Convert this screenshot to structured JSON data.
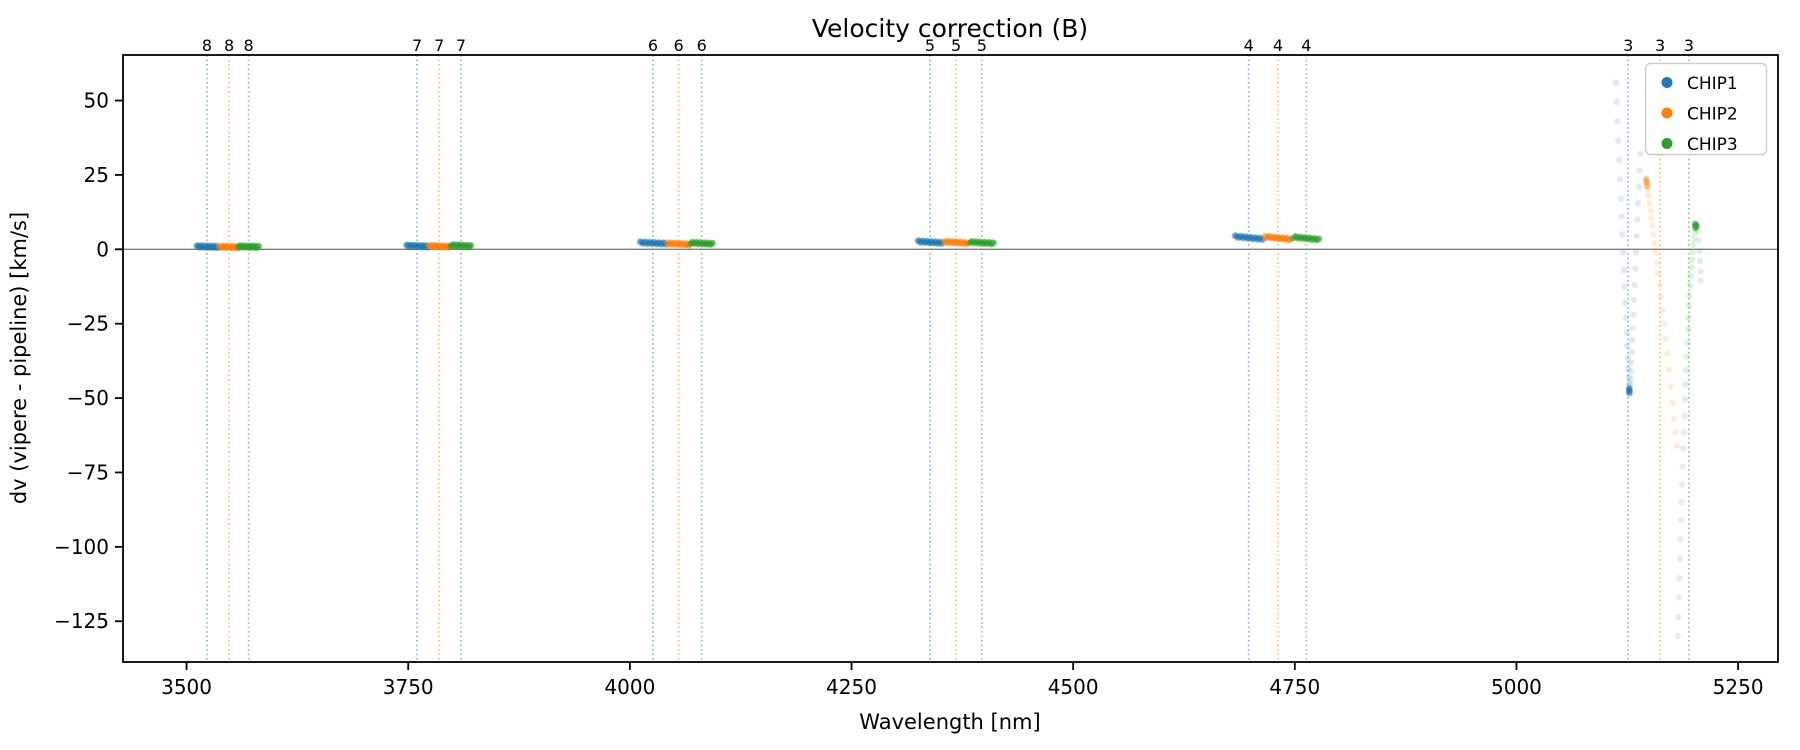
{
  "figure": {
    "background": "#ffffff",
    "frame_color": "#000000",
    "zero_line_color": "#808080"
  },
  "chart_data": {
    "type": "scatter",
    "title": "Velocity correction (B)",
    "xlabel": "Wavelength [nm]",
    "ylabel": "dv (vipere - pipeline) [km/s]",
    "xlim": [
      3428.3,
      5295.0
    ],
    "ylim": [
      -138.7,
      65.3
    ],
    "x_ticks": [
      3500,
      3750,
      4000,
      4250,
      4500,
      4750,
      5000,
      5250
    ],
    "y_ticks": [
      50,
      25,
      0,
      -25,
      -50,
      -75,
      -100,
      -125
    ],
    "grid": false,
    "zero_line": 0,
    "legend_position": "upper right",
    "orders": [
      {
        "order": "8",
        "lines": {
          "CHIP1": 3523.0,
          "CHIP2": 3548.0,
          "CHIP3": 3570.0
        }
      },
      {
        "order": "7",
        "lines": {
          "CHIP1": 3760.0,
          "CHIP2": 3785.0,
          "CHIP3": 3809.5
        }
      },
      {
        "order": "6",
        "lines": {
          "CHIP1": 4026.0,
          "CHIP2": 4055.0,
          "CHIP3": 4081.0
        }
      },
      {
        "order": "5",
        "lines": {
          "CHIP1": 4338.5,
          "CHIP2": 4368.0,
          "CHIP3": 4397.0
        }
      },
      {
        "order": "4",
        "lines": {
          "CHIP1": 4698.0,
          "CHIP2": 4731.0,
          "CHIP3": 4763.0
        }
      },
      {
        "order": "3",
        "lines": {
          "CHIP1": 5126.0,
          "CHIP2": 5162.0,
          "CHIP3": 5194.5
        }
      }
    ],
    "series": [
      {
        "name": "CHIP1",
        "color": "#1f77b4",
        "clusters": [
          {
            "wl": 3523.0,
            "hw": 12.0,
            "dv": 0.9,
            "tilt": -0.2
          },
          {
            "wl": 3760.0,
            "hw": 12.5,
            "dv": 1.1,
            "tilt": -0.3
          },
          {
            "wl": 4026.0,
            "hw": 15.0,
            "dv": 2.1,
            "tilt": -0.4
          },
          {
            "wl": 4338.5,
            "hw": 14.0,
            "dv": 2.4,
            "tilt": -0.5
          },
          {
            "wl": 4698.0,
            "hw": 16.0,
            "dv": 3.9,
            "tilt": -0.9
          }
        ],
        "trail_points": [
          [
            5112.0,
            56
          ],
          [
            5112.9,
            49.5
          ],
          [
            5113.9,
            43
          ],
          [
            5114.8,
            36.5
          ],
          [
            5115.8,
            30
          ],
          [
            5116.7,
            23.5
          ],
          [
            5117.7,
            17
          ],
          [
            5118.6,
            11
          ],
          [
            5119.4,
            5
          ],
          [
            5120.3,
            -1
          ],
          [
            5121.2,
            -7
          ],
          [
            5122.0,
            -12.5
          ],
          [
            5122.8,
            -18
          ],
          [
            5123.5,
            -23
          ],
          [
            5124.2,
            -28
          ],
          [
            5124.9,
            -32.5
          ],
          [
            5125.5,
            -36.5
          ],
          [
            5126.0,
            -40
          ],
          [
            5126.4,
            -43
          ],
          [
            5126.8,
            -45.5
          ],
          [
            5127.0,
            -47
          ],
          [
            5139.5,
            32
          ],
          [
            5138.7,
            26.5
          ],
          [
            5137.9,
            21
          ],
          [
            5137.1,
            15.5
          ],
          [
            5136.4,
            10
          ],
          [
            5135.6,
            4.5
          ],
          [
            5134.8,
            -1
          ],
          [
            5134.0,
            -6.5
          ],
          [
            5133.2,
            -12
          ],
          [
            5132.5,
            -17
          ],
          [
            5131.8,
            -22
          ],
          [
            5131.1,
            -26.5
          ],
          [
            5130.6,
            -30.5
          ],
          [
            5130.0,
            -34.5
          ],
          [
            5129.5,
            -38
          ],
          [
            5129.1,
            -41
          ],
          [
            5128.7,
            -43.5
          ],
          [
            5128.5,
            -45
          ]
        ],
        "dense_points": [
          [
            5127.2,
            -47.4
          ],
          [
            5127.6,
            -46.7
          ],
          [
            5126.9,
            -48.0
          ],
          [
            5127.4,
            -48.4
          ],
          [
            5127.0,
            -46.9
          ],
          [
            5127.8,
            -47.8
          ]
        ]
      },
      {
        "name": "CHIP2",
        "color": "#ff7f0e",
        "clusters": [
          {
            "wl": 3548.0,
            "hw": 11.5,
            "dv": 0.8,
            "tilt": -0.2
          },
          {
            "wl": 3785.0,
            "hw": 12.0,
            "dv": 1.0,
            "tilt": -0.3
          },
          {
            "wl": 4055.0,
            "hw": 13.0,
            "dv": 1.8,
            "tilt": -0.4
          },
          {
            "wl": 4368.0,
            "hw": 13.5,
            "dv": 2.3,
            "tilt": -0.5
          },
          {
            "wl": 4731.0,
            "hw": 15.0,
            "dv": 3.8,
            "tilt": -0.9
          }
        ],
        "trail_points": [
          [
            5146.0,
            24
          ],
          [
            5147.1,
            22
          ],
          [
            5148.1,
            20
          ],
          [
            5149.1,
            18
          ],
          [
            5150.2,
            15.5
          ],
          [
            5151.3,
            13
          ],
          [
            5152.4,
            10.5
          ],
          [
            5153.4,
            8
          ],
          [
            5154.6,
            5
          ],
          [
            5155.9,
            2
          ],
          [
            5157.1,
            -1
          ],
          [
            5158.4,
            -4.5
          ],
          [
            5159.8,
            -8
          ],
          [
            5161.3,
            -12
          ],
          [
            5162.9,
            -16
          ],
          [
            5164.6,
            -20.5
          ],
          [
            5166.2,
            -25
          ],
          [
            5168.1,
            -30
          ],
          [
            5169.9,
            -35
          ],
          [
            5171.9,
            -40.5
          ],
          [
            5173.9,
            -46
          ],
          [
            5175.9,
            -51.5
          ],
          [
            5177.8,
            -57
          ],
          [
            5179.4,
            -61.5
          ],
          [
            5181.0,
            -66
          ]
        ],
        "dense_points": [
          [
            5146.4,
            23.4
          ],
          [
            5147.0,
            22.6
          ],
          [
            5147.7,
            21.2
          ]
        ]
      },
      {
        "name": "CHIP3",
        "color": "#2ca02c",
        "clusters": [
          {
            "wl": 3570.0,
            "hw": 12.0,
            "dv": 0.9,
            "tilt": -0.2
          },
          {
            "wl": 3809.5,
            "hw": 12.0,
            "dv": 1.2,
            "tilt": -0.3
          },
          {
            "wl": 4081.0,
            "hw": 13.0,
            "dv": 2.0,
            "tilt": -0.4
          },
          {
            "wl": 4397.0,
            "hw": 14.0,
            "dv": 2.2,
            "tilt": -0.5
          },
          {
            "wl": 4763.0,
            "hw": 15.0,
            "dv": 3.7,
            "tilt": -0.9
          }
        ],
        "trail_points": [
          [
            5182.0,
            -130
          ],
          [
            5182.6,
            -123.5
          ],
          [
            5183.1,
            -117
          ],
          [
            5183.7,
            -110.5
          ],
          [
            5184.3,
            -104
          ],
          [
            5184.9,
            -97.5
          ],
          [
            5185.6,
            -91
          ],
          [
            5186.2,
            -85
          ],
          [
            5186.8,
            -79
          ],
          [
            5187.5,
            -73
          ],
          [
            5188.1,
            -67
          ],
          [
            5188.7,
            -61.5
          ],
          [
            5189.4,
            -56
          ],
          [
            5190.1,
            -50.5
          ],
          [
            5190.7,
            -45.5
          ],
          [
            5191.4,
            -40.5
          ],
          [
            5192.0,
            -36
          ],
          [
            5192.7,
            -31.5
          ],
          [
            5193.4,
            -27
          ],
          [
            5194.0,
            -23
          ],
          [
            5194.7,
            -19
          ],
          [
            5195.3,
            -15.5
          ],
          [
            5196.0,
            -12
          ],
          [
            5196.7,
            -9
          ],
          [
            5197.4,
            -6
          ],
          [
            5198.0,
            -3.5
          ],
          [
            5198.7,
            -1
          ],
          [
            5199.4,
            1.5
          ],
          [
            5200.2,
            3.5
          ],
          [
            5201.0,
            5.5
          ],
          [
            5201.9,
            7
          ],
          [
            5202.9,
            8
          ],
          [
            5204.6,
            6.5
          ],
          [
            5205.6,
            3
          ],
          [
            5206.3,
            -0.5
          ],
          [
            5206.9,
            -4
          ],
          [
            5207.4,
            -7.5
          ],
          [
            5207.8,
            -10.5
          ]
        ],
        "dense_points": [
          [
            5201.5,
            7.8
          ],
          [
            5202.3,
            8.4
          ],
          [
            5203.1,
            8.1
          ],
          [
            5202.0,
            7.2
          ],
          [
            5202.8,
            7.5
          ],
          [
            5201.2,
            8.6
          ]
        ]
      }
    ]
  }
}
